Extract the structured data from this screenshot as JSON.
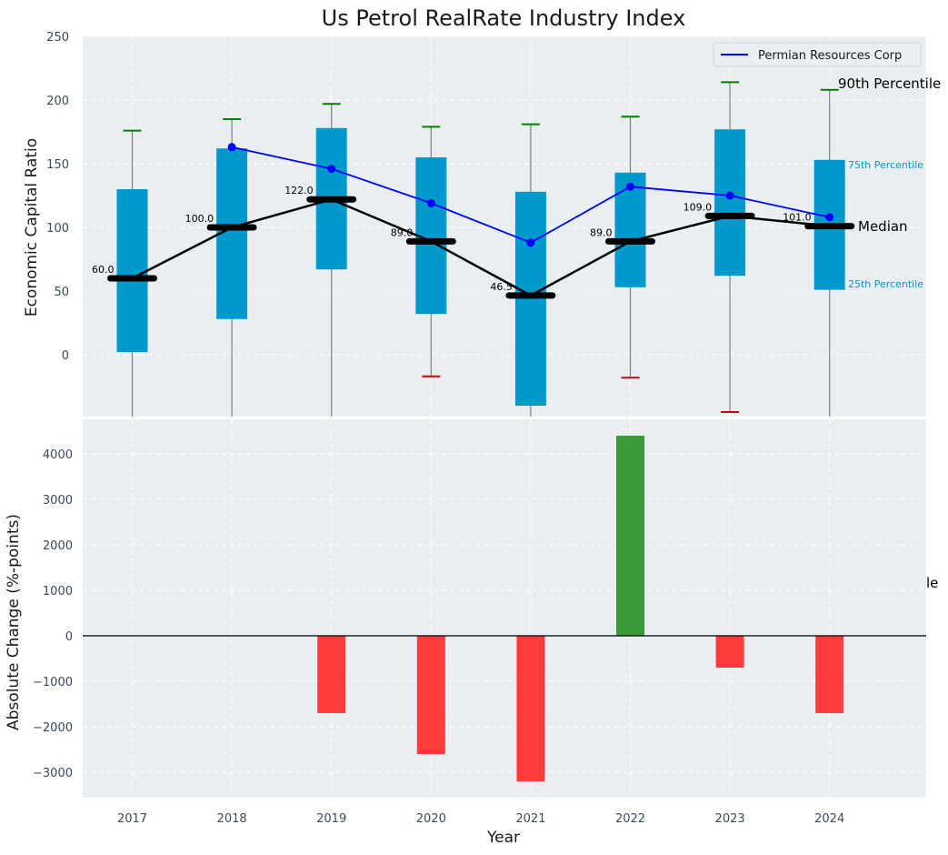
{
  "chart_data": [
    {
      "type": "box",
      "title": "Us Petrol RealRate Industry Index",
      "ylabel": "Economic Capital Ratio",
      "ylim": [
        -48,
        250
      ],
      "yticks": [
        0,
        50,
        100,
        150,
        200,
        250
      ],
      "categories": [
        "2017",
        "2018",
        "2019",
        "2020",
        "2021",
        "2022",
        "2023",
        "2024"
      ],
      "p25": [
        2,
        28,
        67,
        32,
        -40,
        53,
        62,
        51
      ],
      "p75": [
        130,
        162,
        178,
        155,
        128,
        143,
        177,
        153
      ],
      "median": [
        60.0,
        100.0,
        122.0,
        89.0,
        46.5,
        89.0,
        109.0,
        101.0
      ],
      "median_labels": [
        "60.0",
        "100.0",
        "122.0",
        "89.0",
        "46.5",
        "89.0",
        "109.0",
        "101.0"
      ],
      "p90": [
        176,
        185,
        197,
        179,
        181,
        187,
        214,
        208
      ],
      "p10": [
        null,
        null,
        null,
        -17,
        null,
        -18,
        -45,
        null
      ],
      "series": [
        {
          "name": "Permian Resources Corp",
          "values": [
            null,
            163,
            146,
            119,
            88,
            132,
            125,
            108
          ]
        }
      ],
      "legend": {
        "label": "Permian Resources Corp",
        "position": "top-right"
      },
      "annotations": {
        "p90": "90th Percentile",
        "p75": "75th Percentile",
        "median": "Median",
        "p25": "25th Percentile"
      },
      "colors": {
        "box": "#0099cc",
        "median": "#000000",
        "series": "#0000ff",
        "p90_cap": "#008000",
        "p10_cap": "#cc0000",
        "whisker": "#808080"
      }
    },
    {
      "type": "bar",
      "xlabel": "Year",
      "ylabel": "Absolute Change (%-points)",
      "ylim": [
        -3550,
        4800
      ],
      "yticks": [
        -3000,
        -2000,
        -1000,
        0,
        1000,
        2000,
        3000,
        4000
      ],
      "categories": [
        "2017",
        "2018",
        "2019",
        "2020",
        "2021",
        "2022",
        "2023",
        "2024"
      ],
      "values": [
        null,
        null,
        -1700,
        -2600,
        -3200,
        4400,
        -700,
        -1700
      ],
      "stray_text": "le",
      "colors": {
        "positive": "#3a9a3a",
        "negative": "#ff3b3b"
      }
    }
  ]
}
